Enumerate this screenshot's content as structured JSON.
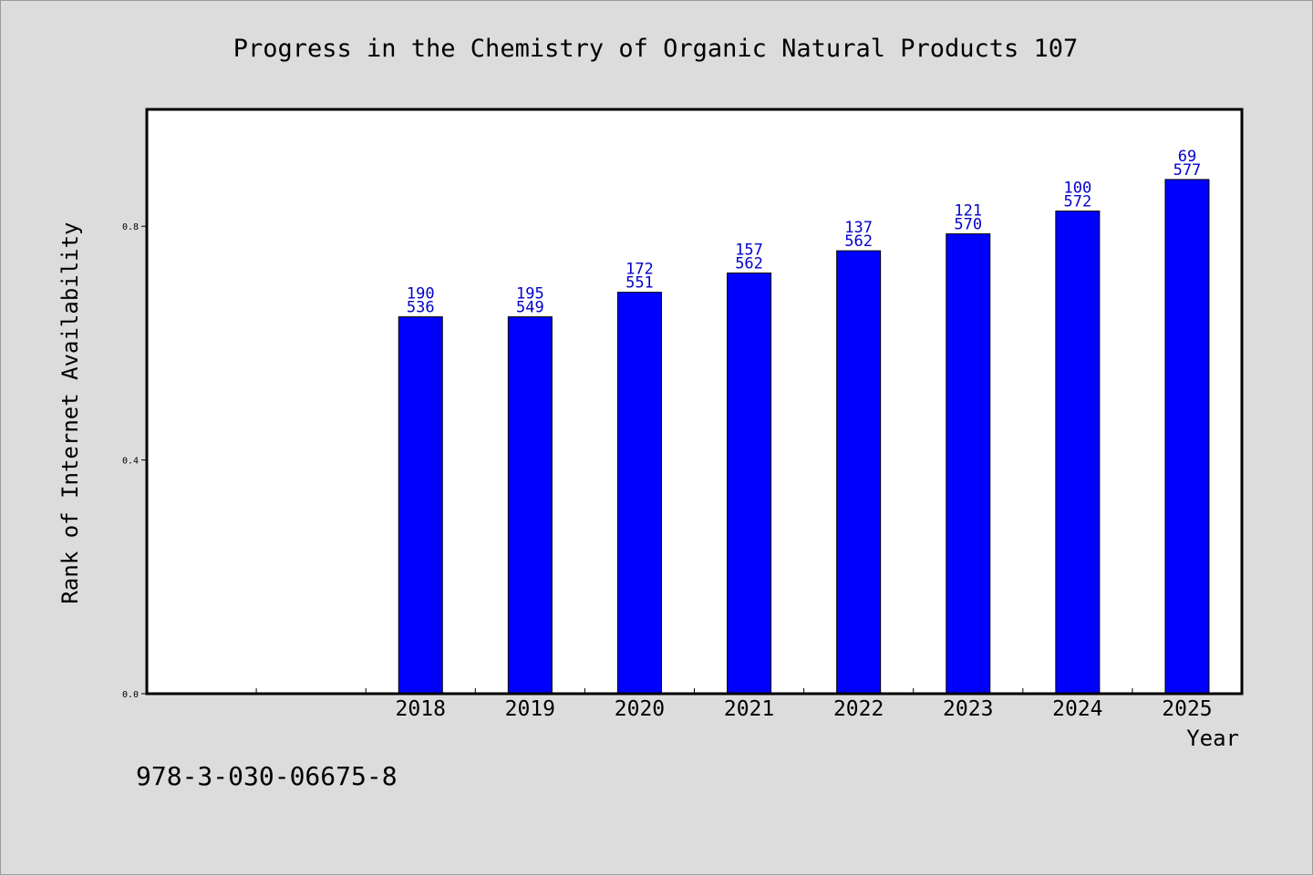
{
  "chart_data": {
    "type": "bar",
    "title": "Progress in the Chemistry of Organic Natural Products 107",
    "xlabel": "Year",
    "ylabel": "Rank of Internet Availability",
    "x_slots": [
      "",
      "",
      "2018",
      "2019",
      "2020",
      "2021",
      "2022",
      "2023",
      "2024",
      "2025"
    ],
    "categories": [
      "2018",
      "2019",
      "2020",
      "2021",
      "2022",
      "2023",
      "2024",
      "2025"
    ],
    "values": [
      0.645,
      0.645,
      0.687,
      0.72,
      0.758,
      0.787,
      0.826,
      0.88
    ],
    "labels_top": [
      "190",
      "195",
      "172",
      "157",
      "137",
      "121",
      "100",
      "69"
    ],
    "labels_bottom": [
      "536",
      "549",
      "551",
      "562",
      "562",
      "570",
      "572",
      "577"
    ],
    "yticks": [
      "0.0",
      "0.4",
      "0.8"
    ],
    "ytick_values": [
      0.0,
      0.4,
      0.8
    ],
    "ylim": [
      0.0,
      1.0
    ],
    "grid": false,
    "colors": {
      "bar": "#0000ff",
      "label": "#0000cc",
      "background": "#dcdcdc",
      "plot": "#ffffff"
    }
  },
  "footer": {
    "isbn": "978-3-030-06675-8"
  }
}
